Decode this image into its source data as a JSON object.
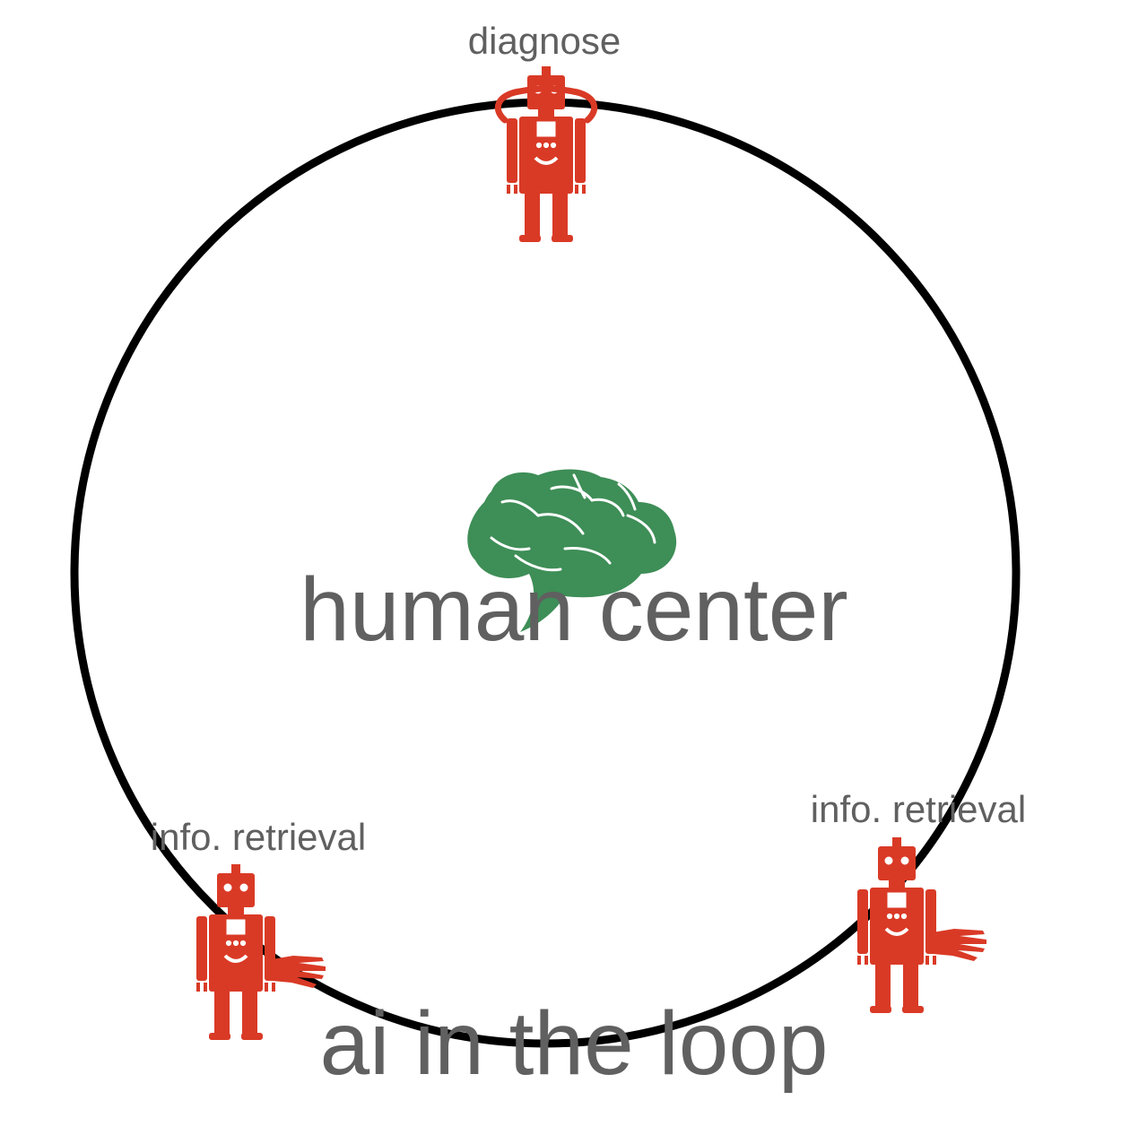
{
  "diagram": {
    "center_label": "human center",
    "loop_label": "ai in the loop",
    "agents": [
      {
        "label": "diagnose",
        "icon": "robot-eye-icon"
      },
      {
        "label": "info. retrieval",
        "icon": "robot-hand-icon"
      },
      {
        "label": "info. retrieval",
        "icon": "robot-hand-icon"
      }
    ],
    "center_icon": "brain-icon"
  },
  "colors": {
    "robot": "#d93a26",
    "brain": "#3e8e57",
    "circle": "#000000",
    "text": "#606060",
    "background": "#ffffff"
  }
}
